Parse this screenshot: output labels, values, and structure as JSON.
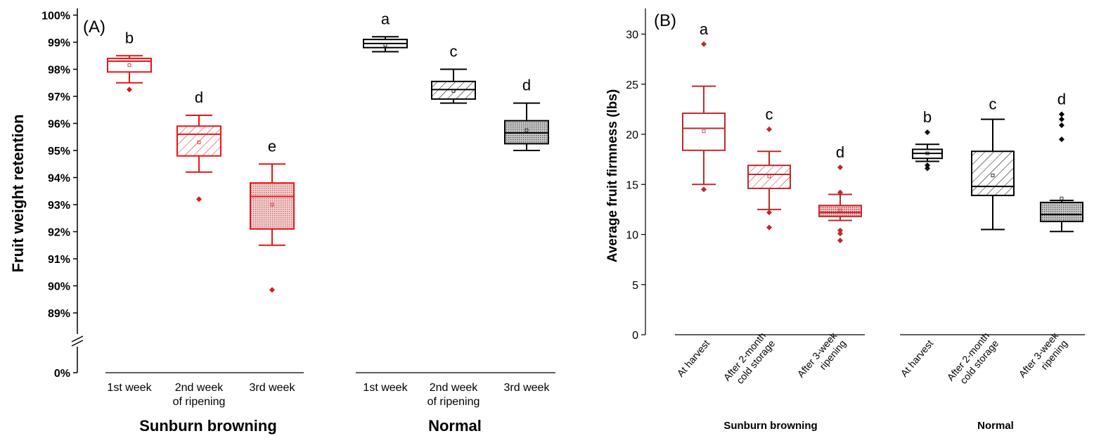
{
  "chart_data": [
    {
      "type": "box",
      "panel_label": "(A)",
      "ylabel": "Fruit weight retention",
      "y_ticks": [
        "100%",
        "99%",
        "98%",
        "97%",
        "96%",
        "95%",
        "94%",
        "93%",
        "92%",
        "91%",
        "90%",
        "89%"
      ],
      "y_axis_break_label": "0%",
      "ylim": [
        88.2,
        100
      ],
      "groups": [
        {
          "name": "Sunburn browning",
          "color": "#e81416",
          "boxes": [
            {
              "category": [
                "1st week"
              ],
              "letter": "b",
              "min": 97.5,
              "q1": 97.9,
              "median": 98.3,
              "q3": 98.4,
              "max": 98.5,
              "mean": 98.15,
              "outliers": [
                97.25
              ],
              "hatch": "none"
            },
            {
              "category": [
                "2nd week",
                "of ripening"
              ],
              "letter": "d",
              "min": 94.2,
              "q1": 94.8,
              "median": 95.6,
              "q3": 95.9,
              "max": 96.3,
              "mean": 95.3,
              "outliers": [
                93.2
              ],
              "hatch": "diagonal"
            },
            {
              "category": [
                "3rd week"
              ],
              "letter": "e",
              "min": 91.5,
              "q1": 92.1,
              "median": 93.3,
              "q3": 93.8,
              "max": 94.5,
              "mean": 93.0,
              "outliers": [
                89.85
              ],
              "hatch": "dots"
            }
          ]
        },
        {
          "name": "Normal",
          "color": "#000000",
          "boxes": [
            {
              "category": [
                "1st week"
              ],
              "letter": "a",
              "min": 98.65,
              "q1": 98.8,
              "median": 98.95,
              "q3": 99.1,
              "max": 99.2,
              "mean": 98.9,
              "outliers": [],
              "hatch": "none"
            },
            {
              "category": [
                "2nd week",
                "of ripening"
              ],
              "letter": "c",
              "min": 96.75,
              "q1": 96.9,
              "median": 97.25,
              "q3": 97.55,
              "max": 98.0,
              "mean": 97.2,
              "outliers": [],
              "hatch": "diagonal"
            },
            {
              "category": [
                "3rd week"
              ],
              "letter": "d",
              "min": 95.0,
              "q1": 95.25,
              "median": 95.65,
              "q3": 96.1,
              "max": 96.75,
              "mean": 95.75,
              "outliers": [],
              "hatch": "dots"
            }
          ]
        }
      ]
    },
    {
      "type": "box",
      "panel_label": "(B)",
      "ylabel": "Average fruit firmness (lbs)",
      "y_ticks": [
        "0",
        "5",
        "10",
        "15",
        "20",
        "25",
        "30"
      ],
      "ylim": [
        0,
        32.5
      ],
      "groups": [
        {
          "name": "Sunburn browning",
          "color": "#c0282d",
          "boxes": [
            {
              "category": [
                "At harvest"
              ],
              "letter": "a",
              "min": 15.0,
              "q1": 18.4,
              "median": 20.6,
              "q3": 22.1,
              "max": 24.8,
              "mean": 20.3,
              "outliers": [
                29.0,
                14.5
              ],
              "hatch": "none"
            },
            {
              "category": [
                "After 2-month",
                "cold storage"
              ],
              "letter": "c",
              "min": 12.5,
              "q1": 14.6,
              "median": 16.0,
              "q3": 16.9,
              "max": 18.3,
              "mean": 15.8,
              "outliers": [
                20.5,
                12.2,
                10.7
              ],
              "hatch": "diagonal"
            },
            {
              "category": [
                "After 3-week",
                "ripening"
              ],
              "letter": "d",
              "min": 11.4,
              "q1": 11.8,
              "median": 12.2,
              "q3": 12.9,
              "max": 14.0,
              "mean": 12.4,
              "outliers": [
                16.7,
                14.2,
                10.4,
                10.1,
                9.4
              ],
              "hatch": "dots"
            }
          ]
        },
        {
          "name": "Normal",
          "color": "#000000",
          "boxes": [
            {
              "category": [
                "At harvest"
              ],
              "letter": "b",
              "min": 17.3,
              "q1": 17.6,
              "median": 18.1,
              "q3": 18.5,
              "max": 19.0,
              "mean": 18.1,
              "outliers": [
                20.2,
                16.9,
                16.6
              ],
              "hatch": "none"
            },
            {
              "category": [
                "After 2-month",
                "cold storage"
              ],
              "letter": "c",
              "min": 10.5,
              "q1": 13.9,
              "median": 14.8,
              "q3": 18.3,
              "max": 21.5,
              "mean": 15.9,
              "outliers": [],
              "hatch": "diagonal"
            },
            {
              "category": [
                "After 3-week",
                "ripening"
              ],
              "letter": "d",
              "min": 10.3,
              "q1": 11.3,
              "median": 12.0,
              "q3": 13.2,
              "max": 13.4,
              "mean": 13.6,
              "outliers": [
                22.0,
                21.5,
                20.9,
                19.5
              ],
              "hatch": "dots"
            }
          ]
        }
      ]
    }
  ]
}
